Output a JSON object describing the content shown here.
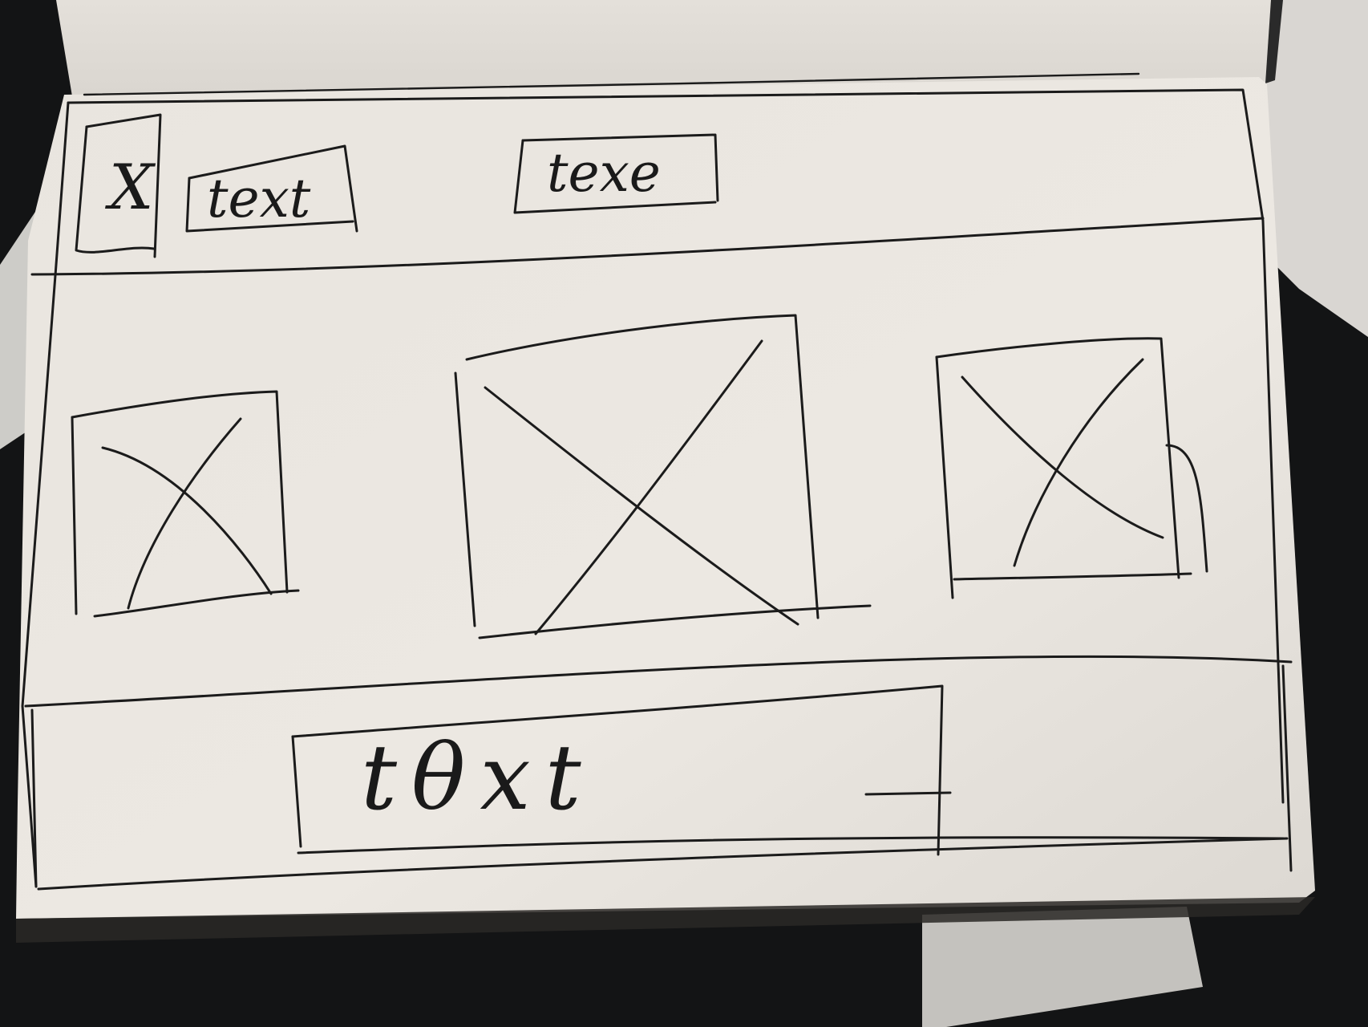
{
  "header": {
    "logo_placeholder": "X",
    "nav_text_1": "text",
    "nav_text_2": "texe"
  },
  "main": {
    "images": [
      {
        "label": "image-placeholder-left"
      },
      {
        "label": "image-placeholder-center"
      },
      {
        "label": "image-placeholder-right"
      }
    ]
  },
  "footer": {
    "text": "tθxt"
  },
  "colors": {
    "paper": "#ebe7e1",
    "ink": "#1b1b1b",
    "background": "#141516"
  }
}
